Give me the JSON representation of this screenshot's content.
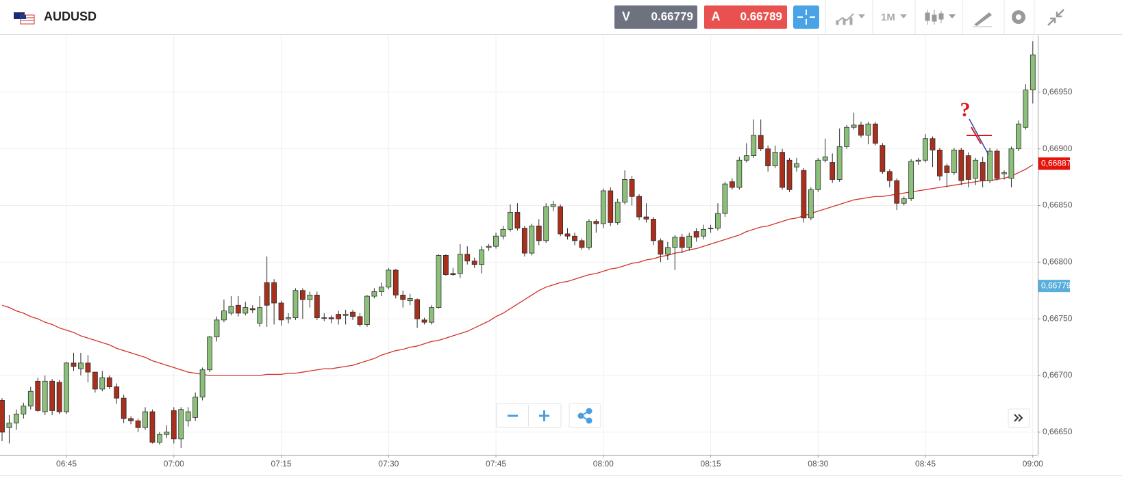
{
  "toolbar": {
    "symbol": "AUDUSD",
    "bid_tag": "V",
    "bid": 0.66779,
    "ask_tag": "A",
    "ask": 0.66789,
    "timeframe": "1M"
  },
  "chart_data": {
    "type": "candlestick",
    "categories": [
      null,
      null,
      null,
      null,
      null,
      null,
      null,
      null,
      null,
      "06:45",
      null,
      null,
      null,
      null,
      null,
      null,
      null,
      null,
      null,
      null,
      null,
      null,
      null,
      null,
      "07:00",
      null,
      null,
      null,
      null,
      null,
      null,
      null,
      null,
      null,
      null,
      null,
      null,
      null,
      null,
      "07:15",
      null,
      null,
      null,
      null,
      null,
      null,
      null,
      null,
      null,
      null,
      null,
      null,
      null,
      null,
      "07:30",
      null,
      null,
      null,
      null,
      null,
      null,
      null,
      null,
      null,
      null,
      null,
      null,
      null,
      null,
      "07:45",
      null,
      null,
      null,
      null,
      null,
      null,
      null,
      null,
      null,
      null,
      null,
      null,
      null,
      null,
      "08:00",
      null,
      null,
      null,
      null,
      null,
      null,
      null,
      null,
      null,
      null,
      null,
      null,
      null,
      null,
      "08:15",
      null,
      null,
      null,
      null,
      null,
      null,
      null,
      null,
      null,
      null,
      null,
      null,
      null,
      null,
      "08:30",
      null,
      null,
      null,
      null,
      null,
      null,
      null,
      null,
      null,
      null,
      null,
      null,
      null,
      null,
      "08:45",
      null,
      null,
      null,
      null,
      null,
      null,
      null,
      null,
      null,
      null,
      null,
      null,
      null,
      null,
      "09:00"
    ],
    "candles": [
      [
        0.66678,
        0.6668,
        0.66642,
        0.6665
      ],
      [
        0.66654,
        0.66665,
        0.6664,
        0.66658
      ],
      [
        0.66658,
        0.6667,
        0.66652,
        0.66666
      ],
      [
        0.66666,
        0.66676,
        0.66662,
        0.66673
      ],
      [
        0.66673,
        0.6669,
        0.6667,
        0.66686
      ],
      [
        0.66695,
        0.66698,
        0.66668,
        0.66669
      ],
      [
        0.66668,
        0.667,
        0.66665,
        0.66695
      ],
      [
        0.66695,
        0.66697,
        0.66665,
        0.66669
      ],
      [
        0.66694,
        0.66696,
        0.66666,
        0.66668
      ],
      [
        0.66668,
        0.66712,
        0.66666,
        0.66711
      ],
      [
        0.66711,
        0.6672,
        0.66704,
        0.66708
      ],
      [
        0.66706,
        0.6672,
        0.667,
        0.66711
      ],
      [
        0.66711,
        0.66718,
        0.66694,
        0.66703
      ],
      [
        0.66703,
        0.66703,
        0.66685,
        0.66688
      ],
      [
        0.66688,
        0.66704,
        0.66686,
        0.66698
      ],
      [
        0.66698,
        0.667,
        0.66688,
        0.6669
      ],
      [
        0.6669,
        0.66693,
        0.66675,
        0.6668
      ],
      [
        0.6668,
        0.66683,
        0.66658,
        0.66662
      ],
      [
        0.66662,
        0.66664,
        0.66657,
        0.6666
      ],
      [
        0.6666,
        0.66662,
        0.6665,
        0.66654
      ],
      [
        0.66654,
        0.66672,
        0.66652,
        0.66668
      ],
      [
        0.66668,
        0.6667,
        0.6664,
        0.66641
      ],
      [
        0.66641,
        0.6665,
        0.66639,
        0.66648
      ],
      [
        0.66648,
        0.66656,
        0.66645,
        0.6665
      ],
      [
        0.66669,
        0.66672,
        0.6664,
        0.66644
      ],
      [
        0.66644,
        0.66672,
        0.66636,
        0.6667
      ],
      [
        0.6666,
        0.66672,
        0.66655,
        0.66668
      ],
      [
        0.66663,
        0.66685,
        0.6666,
        0.66681
      ],
      [
        0.66681,
        0.66707,
        0.66678,
        0.66705
      ],
      [
        0.66705,
        0.66735,
        0.66703,
        0.66734
      ],
      [
        0.66734,
        0.66752,
        0.6673,
        0.66749
      ],
      [
        0.66749,
        0.66767,
        0.66747,
        0.66757
      ],
      [
        0.66755,
        0.6677,
        0.66753,
        0.66761
      ],
      [
        0.66762,
        0.6677,
        0.66752,
        0.66755
      ],
      [
        0.66755,
        0.66765,
        0.66753,
        0.6676
      ],
      [
        0.66759,
        0.66762,
        0.66755,
        0.66758
      ],
      [
        0.66746,
        0.6677,
        0.66743,
        0.6676
      ],
      [
        0.66782,
        0.66805,
        0.66743,
        0.66762
      ],
      [
        0.66782,
        0.66785,
        0.66745,
        0.66764
      ],
      [
        0.66764,
        0.66766,
        0.66744,
        0.66749
      ],
      [
        0.6675,
        0.66755,
        0.66746,
        0.66751
      ],
      [
        0.66751,
        0.66777,
        0.66749,
        0.66775
      ],
      [
        0.66775,
        0.66777,
        0.6675,
        0.66767
      ],
      [
        0.66767,
        0.66774,
        0.6676,
        0.66771
      ],
      [
        0.66771,
        0.66774,
        0.66749,
        0.66751
      ],
      [
        0.66751,
        0.66755,
        0.66748,
        0.66751
      ],
      [
        0.66751,
        0.66753,
        0.66746,
        0.6675
      ],
      [
        0.66754,
        0.66757,
        0.66745,
        0.6675
      ],
      [
        0.66753,
        0.66758,
        0.66745,
        0.66754
      ],
      [
        0.66756,
        0.66758,
        0.66749,
        0.66752
      ],
      [
        0.66752,
        0.66755,
        0.66743,
        0.66745
      ],
      [
        0.66745,
        0.66771,
        0.66743,
        0.6677
      ],
      [
        0.6677,
        0.66777,
        0.66768,
        0.66774
      ],
      [
        0.66774,
        0.66782,
        0.6677,
        0.66778
      ],
      [
        0.66778,
        0.66795,
        0.66776,
        0.66793
      ],
      [
        0.66793,
        0.66794,
        0.66768,
        0.66771
      ],
      [
        0.66771,
        0.66775,
        0.6676,
        0.66767
      ],
      [
        0.66766,
        0.66772,
        0.66762,
        0.66768
      ],
      [
        0.66767,
        0.66768,
        0.66742,
        0.6675
      ],
      [
        0.66749,
        0.66751,
        0.66745,
        0.66747
      ],
      [
        0.66747,
        0.66762,
        0.66745,
        0.6676
      ],
      [
        0.6676,
        0.66807,
        0.66759,
        0.66806
      ],
      [
        0.66806,
        0.66807,
        0.66788,
        0.66789
      ],
      [
        0.6679,
        0.66795,
        0.66788,
        0.66789
      ],
      [
        0.6679,
        0.66816,
        0.66786,
        0.66807
      ],
      [
        0.66807,
        0.66814,
        0.66798,
        0.66801
      ],
      [
        0.66801,
        0.66804,
        0.66795,
        0.66798
      ],
      [
        0.66798,
        0.66814,
        0.6679,
        0.66811
      ],
      [
        0.66813,
        0.66816,
        0.6681,
        0.66814
      ],
      [
        0.66814,
        0.66826,
        0.66812,
        0.66823
      ],
      [
        0.66823,
        0.66832,
        0.6682,
        0.66829
      ],
      [
        0.66829,
        0.66851,
        0.66827,
        0.66844
      ],
      [
        0.66844,
        0.66852,
        0.66828,
        0.6683
      ],
      [
        0.6683,
        0.66832,
        0.66805,
        0.66808
      ],
      [
        0.66808,
        0.66834,
        0.66806,
        0.66832
      ],
      [
        0.66832,
        0.66838,
        0.66815,
        0.66819
      ],
      [
        0.66819,
        0.66852,
        0.66817,
        0.66849
      ],
      [
        0.66849,
        0.66854,
        0.66845,
        0.66851
      ],
      [
        0.66849,
        0.66851,
        0.66823,
        0.66825
      ],
      [
        0.66825,
        0.6683,
        0.6682,
        0.66823
      ],
      [
        0.66823,
        0.66826,
        0.66815,
        0.66819
      ],
      [
        0.66819,
        0.66821,
        0.66811,
        0.66813
      ],
      [
        0.66813,
        0.66838,
        0.66811,
        0.66836
      ],
      [
        0.66836,
        0.66838,
        0.66826,
        0.66834
      ],
      [
        0.66834,
        0.66865,
        0.6683,
        0.66863
      ],
      [
        0.66863,
        0.66866,
        0.66832,
        0.66835
      ],
      [
        0.66835,
        0.66856,
        0.66833,
        0.66853
      ],
      [
        0.66853,
        0.66881,
        0.66851,
        0.66873
      ],
      [
        0.66873,
        0.66876,
        0.6685,
        0.66858
      ],
      [
        0.66858,
        0.6686,
        0.66837,
        0.6684
      ],
      [
        0.6684,
        0.66852,
        0.66835,
        0.66838
      ],
      [
        0.66838,
        0.6684,
        0.66815,
        0.66819
      ],
      [
        0.66819,
        0.66821,
        0.668,
        0.66807
      ],
      [
        0.66807,
        0.66818,
        0.66802,
        0.66813
      ],
      [
        0.66813,
        0.66824,
        0.66793,
        0.66822
      ],
      [
        0.66822,
        0.66825,
        0.66808,
        0.66813
      ],
      [
        0.66813,
        0.66826,
        0.6681,
        0.66823
      ],
      [
        0.66827,
        0.6683,
        0.66818,
        0.66822
      ],
      [
        0.66823,
        0.66833,
        0.6682,
        0.66829
      ],
      [
        0.6683,
        0.66833,
        0.66826,
        0.6683
      ],
      [
        0.6683,
        0.66852,
        0.66828,
        0.66843
      ],
      [
        0.66843,
        0.66871,
        0.6684,
        0.66869
      ],
      [
        0.66871,
        0.66874,
        0.66864,
        0.66866
      ],
      [
        0.66866,
        0.66893,
        0.66864,
        0.6689
      ],
      [
        0.6689,
        0.66905,
        0.66888,
        0.66894
      ],
      [
        0.66894,
        0.66926,
        0.66892,
        0.66912
      ],
      [
        0.66912,
        0.66926,
        0.66898,
        0.669
      ],
      [
        0.669,
        0.66903,
        0.6688,
        0.66885
      ],
      [
        0.66885,
        0.66903,
        0.66883,
        0.66897
      ],
      [
        0.66897,
        0.669,
        0.66864,
        0.66866
      ],
      [
        0.6689,
        0.66892,
        0.66862,
        0.66864
      ],
      [
        0.66884,
        0.66892,
        0.6688,
        0.66887
      ],
      [
        0.66881,
        0.66883,
        0.66835,
        0.66839
      ],
      [
        0.66839,
        0.66866,
        0.66837,
        0.66864
      ],
      [
        0.66864,
        0.66892,
        0.66862,
        0.6689
      ],
      [
        0.6689,
        0.66909,
        0.66888,
        0.66893
      ],
      [
        0.66888,
        0.66896,
        0.6687,
        0.66873
      ],
      [
        0.66873,
        0.66918,
        0.66871,
        0.66902
      ],
      [
        0.66902,
        0.66921,
        0.669,
        0.66919
      ],
      [
        0.66919,
        0.66932,
        0.66917,
        0.66921
      ],
      [
        0.66921,
        0.66924,
        0.6691,
        0.66912
      ],
      [
        0.66912,
        0.66924,
        0.66904,
        0.66922
      ],
      [
        0.66922,
        0.66924,
        0.66903,
        0.66905
      ],
      [
        0.66903,
        0.66905,
        0.66878,
        0.6688
      ],
      [
        0.6688,
        0.66882,
        0.66866,
        0.66872
      ],
      [
        0.66872,
        0.66874,
        0.66846,
        0.66852
      ],
      [
        0.66852,
        0.66858,
        0.6685,
        0.66856
      ],
      [
        0.66856,
        0.66891,
        0.66854,
        0.66889
      ],
      [
        0.66889,
        0.66892,
        0.66886,
        0.6689
      ],
      [
        0.6689,
        0.66913,
        0.66888,
        0.66909
      ],
      [
        0.66909,
        0.66911,
        0.66884,
        0.66899
      ],
      [
        0.66899,
        0.66901,
        0.66872,
        0.66876
      ],
      [
        0.66885,
        0.66887,
        0.66866,
        0.66879
      ],
      [
        0.66879,
        0.66901,
        0.66877,
        0.66899
      ],
      [
        0.66899,
        0.66901,
        0.66868,
        0.66872
      ],
      [
        0.66894,
        0.66897,
        0.66866,
        0.66873
      ],
      [
        0.66874,
        0.66892,
        0.66868,
        0.6689
      ],
      [
        0.66888,
        0.66893,
        0.66866,
        0.66872
      ],
      [
        0.66872,
        0.66901,
        0.6687,
        0.66898
      ],
      [
        0.66898,
        0.669,
        0.66872,
        0.66874
      ],
      [
        0.66878,
        0.66881,
        0.66873,
        0.66879
      ],
      [
        0.66874,
        0.66902,
        0.66866,
        0.669
      ],
      [
        0.669,
        0.66925,
        0.66898,
        0.66922
      ],
      [
        0.66919,
        0.66957,
        0.66917,
        0.66952
      ],
      [
        0.66952,
        0.66995,
        0.6694,
        0.66983
      ]
    ],
    "colors": {
      "up": "#8cc07a",
      "down": "#a8301c",
      "outline": "#2a2a2a"
    },
    "ma": {
      "color": "#d2302a",
      "values": [
        0.66762,
        0.6676,
        0.66757,
        0.66755,
        0.66752,
        0.6675,
        0.66747,
        0.66745,
        0.66742,
        0.6674,
        0.66738,
        0.66735,
        0.66733,
        0.66731,
        0.66729,
        0.66727,
        0.66724,
        0.66722,
        0.6672,
        0.66718,
        0.66716,
        0.66713,
        0.66711,
        0.66709,
        0.66707,
        0.66705,
        0.66703,
        0.66702,
        0.66701,
        0.667,
        0.667,
        0.667,
        0.667,
        0.667,
        0.667,
        0.667,
        0.667,
        0.66701,
        0.66701,
        0.66701,
        0.66702,
        0.66702,
        0.66703,
        0.66704,
        0.66705,
        0.66706,
        0.66706,
        0.66707,
        0.66708,
        0.66709,
        0.66711,
        0.66713,
        0.66715,
        0.66718,
        0.6672,
        0.66722,
        0.66723,
        0.66725,
        0.66726,
        0.66728,
        0.6673,
        0.66731,
        0.66733,
        0.66735,
        0.66737,
        0.66739,
        0.66742,
        0.66745,
        0.66748,
        0.66752,
        0.66755,
        0.66759,
        0.66763,
        0.66767,
        0.66771,
        0.66775,
        0.66778,
        0.6678,
        0.66782,
        0.66783,
        0.66785,
        0.66787,
        0.66789,
        0.6679,
        0.66792,
        0.66794,
        0.66795,
        0.66797,
        0.66799,
        0.668,
        0.66802,
        0.66803,
        0.66805,
        0.66806,
        0.66808,
        0.66809,
        0.66811,
        0.66812,
        0.66814,
        0.66816,
        0.66818,
        0.6682,
        0.66822,
        0.66824,
        0.66827,
        0.66829,
        0.66831,
        0.66832,
        0.66834,
        0.66836,
        0.66838,
        0.66839,
        0.66841,
        0.66843,
        0.66845,
        0.66847,
        0.66849,
        0.66851,
        0.66853,
        0.66855,
        0.66856,
        0.66857,
        0.66858,
        0.66858,
        0.66859,
        0.6686,
        0.66861,
        0.66862,
        0.66863,
        0.66864,
        0.66865,
        0.66866,
        0.66867,
        0.66868,
        0.66869,
        0.6687,
        0.66871,
        0.66872,
        0.66872,
        0.66873,
        0.66874,
        0.66876,
        0.66879,
        0.66882,
        0.66886
      ]
    },
    "ylim": [
      0.6663,
      0.67
    ],
    "yticks": [
      {
        "value": 0.6665,
        "label": "0,66650"
      },
      {
        "value": 0.667,
        "label": "0,66700"
      },
      {
        "value": 0.6675,
        "label": "0,66750"
      },
      {
        "value": 0.668,
        "label": "0,66800"
      },
      {
        "value": 0.6685,
        "label": "0,66850"
      },
      {
        "value": 0.669,
        "label": "0,66900"
      },
      {
        "value": 0.6695,
        "label": "0,66950"
      }
    ],
    "grid": true,
    "price_tags": [
      {
        "value": 0.66887,
        "label": "0,66887",
        "color": "#e8120c"
      },
      {
        "value": 0.66779,
        "label": "0,66779",
        "color": "#5aaedc"
      }
    ],
    "annotation": "?"
  }
}
